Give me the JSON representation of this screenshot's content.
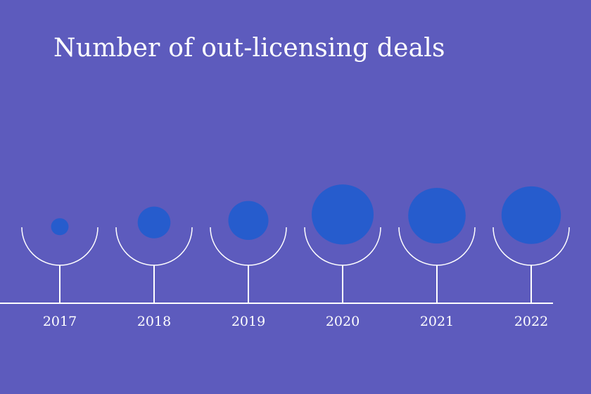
{
  "chart_data": {
    "type": "bubble",
    "title": "Number of out-licensing deals",
    "categories": [
      "2017",
      "2018",
      "2019",
      "2020",
      "2021",
      "2022"
    ],
    "values": [
      8,
      28,
      42,
      100,
      86,
      92
    ],
    "value_note": "relative bubble size only; no values printed",
    "colors": {
      "background": "#5d5bbd",
      "bubble": "#265ccd",
      "line": "#ffffff"
    }
  }
}
